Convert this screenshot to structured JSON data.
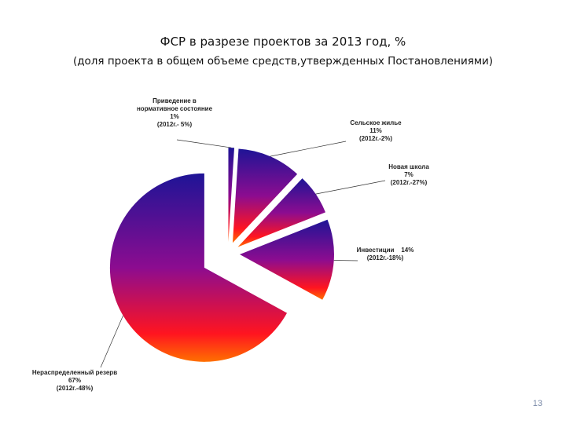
{
  "chart_data": {
    "type": "pie",
    "title": "ФСР в разрезе проектов за 2013 год, %",
    "subtitle": "(доля проекта в общем объеме средств,утвержденных Постановлениями)",
    "categories": [
      "Приведение в нормативное состояние",
      "Сельское жилье",
      "Новая школа",
      "Инвестиции",
      "Нераспределенный резерв"
    ],
    "values": [
      1,
      11,
      7,
      14,
      67
    ],
    "value_labels": [
      "1%",
      "11%",
      "7%",
      "14%",
      "67%"
    ],
    "previous_year_labels": [
      "(2012г.- 5%)",
      "(2012г.-2%)",
      "(2012г.-27%)",
      "(2012г.-18%)",
      "(2012г.-48%)"
    ]
  },
  "page_number": "13"
}
